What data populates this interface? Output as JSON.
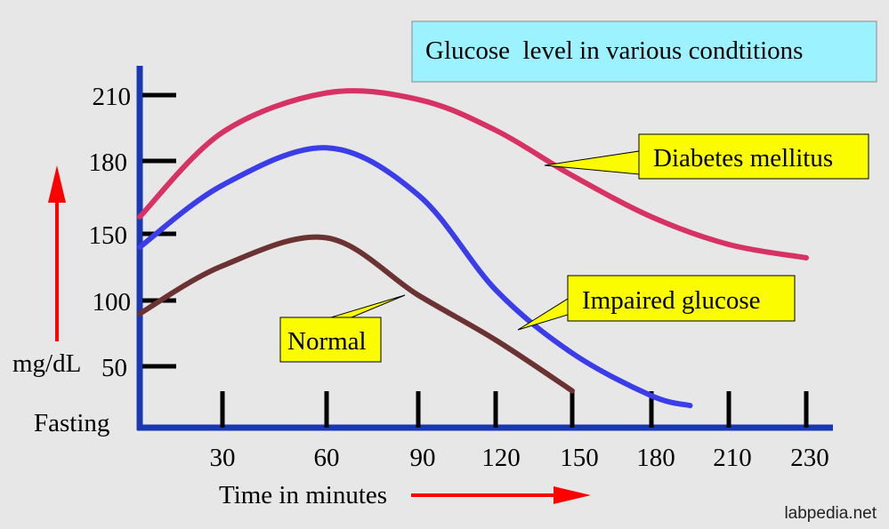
{
  "chart_data": {
    "type": "line",
    "title": "Glucose  level in various condtitions",
    "xlabel": "Time in minutes",
    "ylabel": "mg/dL",
    "x_zero_label": "Fasting",
    "x_ticks": [
      "30",
      "60",
      "90",
      "120",
      "150",
      "180",
      "210",
      "230"
    ],
    "y_ticks": [
      "50",
      "100",
      "150",
      "180",
      "210"
    ],
    "series": [
      {
        "name": "Diabetes mellitus",
        "color": "#d63264",
        "x": [
          0,
          30,
          60,
          90,
          120,
          150,
          180,
          210,
          230
        ],
        "y": [
          157,
          193,
          211,
          208,
          194,
          174,
          157,
          142,
          132
        ]
      },
      {
        "name": "Impaired glucose",
        "color": "#3a3de8",
        "x": [
          0,
          30,
          60,
          90,
          120,
          150,
          180,
          195
        ],
        "y": [
          140,
          170,
          186,
          166,
          108,
          60,
          26,
          18
        ]
      },
      {
        "name": "Normal",
        "color": "#6b3232",
        "x": [
          0,
          30,
          60,
          90,
          120,
          150
        ],
        "y": [
          90,
          126,
          147,
          104,
          70,
          30
        ]
      }
    ],
    "annotations": [
      "Diabetes mellitus",
      "Impaired glucose",
      "Normal"
    ],
    "source": "labpedia.net",
    "colors": {
      "background": "#e7e7e7",
      "axis": "#1a37b4",
      "title_box": "#9cf3ff",
      "label_box": "#fcfc00",
      "arrow": "#ff0000"
    }
  }
}
